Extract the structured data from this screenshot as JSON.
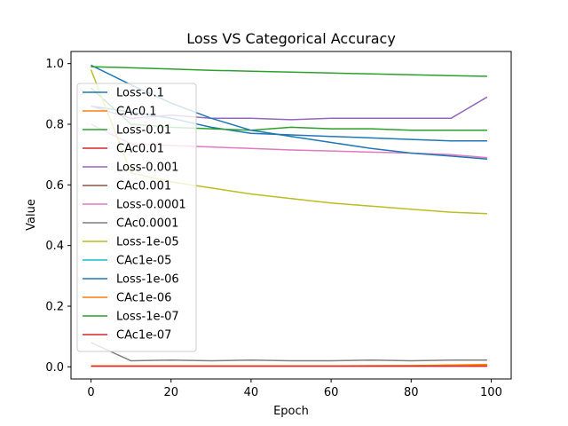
{
  "chart_data": {
    "type": "line",
    "title": "Loss VS Categorical Accuracy",
    "xlabel": "Epoch",
    "ylabel": "Value",
    "xlim": [
      -5,
      105
    ],
    "ylim": [
      -0.04,
      1.04
    ],
    "x_ticks": [
      0,
      20,
      40,
      60,
      80,
      100
    ],
    "x_tick_labels": [
      "0",
      "20",
      "40",
      "60",
      "80",
      "100"
    ],
    "y_ticks": [
      0.0,
      0.2,
      0.4,
      0.6,
      0.8,
      1.0
    ],
    "y_tick_labels": [
      "0.0",
      "0.2",
      "0.4",
      "0.6",
      "0.8",
      "1.0"
    ],
    "grid": false,
    "legend_position": "upper-left",
    "x": [
      0,
      10,
      20,
      30,
      40,
      50,
      60,
      70,
      80,
      90,
      99
    ],
    "series": [
      {
        "name": "Loss-0.1",
        "color": "#1f77b4",
        "values": [
          0.86,
          0.84,
          0.82,
          0.79,
          0.77,
          0.765,
          0.76,
          0.755,
          0.75,
          0.745,
          0.745
        ]
      },
      {
        "name": "CAc0.1",
        "color": "#ff7f0e",
        "values": [
          0.003,
          0.003,
          0.003,
          0.003,
          0.003,
          0.003,
          0.003,
          0.003,
          0.004,
          0.006,
          0.008
        ]
      },
      {
        "name": "Loss-0.01",
        "color": "#2ca02c",
        "values": [
          0.92,
          0.8,
          0.79,
          0.785,
          0.78,
          0.79,
          0.785,
          0.785,
          0.78,
          0.78,
          0.78
        ]
      },
      {
        "name": "CAc0.01",
        "color": "#d62728",
        "values": [
          0.003,
          0.003,
          0.003,
          0.003,
          0.003,
          0.003,
          0.003,
          0.003,
          0.003,
          0.003,
          0.003
        ]
      },
      {
        "name": "Loss-0.001",
        "color": "#9467bd",
        "values": [
          0.86,
          0.82,
          0.83,
          0.82,
          0.82,
          0.815,
          0.82,
          0.82,
          0.82,
          0.82,
          0.89
        ]
      },
      {
        "name": "CAc0.001",
        "color": "#8c564b",
        "values": [
          0.003,
          0.003,
          0.003,
          0.003,
          0.003,
          0.003,
          0.003,
          0.003,
          0.003,
          0.003,
          0.003
        ]
      },
      {
        "name": "Loss-0.0001",
        "color": "#e377c2",
        "values": [
          0.8,
          0.735,
          0.73,
          0.725,
          0.72,
          0.715,
          0.712,
          0.708,
          0.705,
          0.7,
          0.69
        ]
      },
      {
        "name": "CAc0.0001",
        "color": "#7f7f7f",
        "values": [
          0.08,
          0.02,
          0.022,
          0.02,
          0.022,
          0.02,
          0.02,
          0.022,
          0.02,
          0.022,
          0.022
        ]
      },
      {
        "name": "Loss-1e-05",
        "color": "#bcbd22",
        "values": [
          0.98,
          0.64,
          0.61,
          0.59,
          0.57,
          0.555,
          0.54,
          0.53,
          0.52,
          0.51,
          0.505
        ]
      },
      {
        "name": "CAc1e-05",
        "color": "#17becf",
        "values": [
          0.003,
          0.003,
          0.003,
          0.003,
          0.003,
          0.003,
          0.003,
          0.003,
          0.003,
          0.003,
          0.003
        ]
      },
      {
        "name": "Loss-1e-06",
        "color": "#1f77b4",
        "values": [
          0.995,
          0.93,
          0.87,
          0.82,
          0.78,
          0.76,
          0.74,
          0.72,
          0.705,
          0.695,
          0.685
        ]
      },
      {
        "name": "CAc1e-06",
        "color": "#ff7f0e",
        "values": [
          0.003,
          0.003,
          0.003,
          0.003,
          0.003,
          0.003,
          0.003,
          0.004,
          0.004,
          0.005,
          0.006
        ]
      },
      {
        "name": "Loss-1e-07",
        "color": "#2ca02c",
        "values": [
          0.99,
          0.986,
          0.982,
          0.978,
          0.975,
          0.972,
          0.969,
          0.966,
          0.963,
          0.96,
          0.958
        ]
      },
      {
        "name": "CAc1e-07",
        "color": "#d62728",
        "values": [
          0.002,
          0.002,
          0.002,
          0.002,
          0.002,
          0.002,
          0.002,
          0.002,
          0.002,
          0.002,
          0.002
        ]
      }
    ]
  }
}
